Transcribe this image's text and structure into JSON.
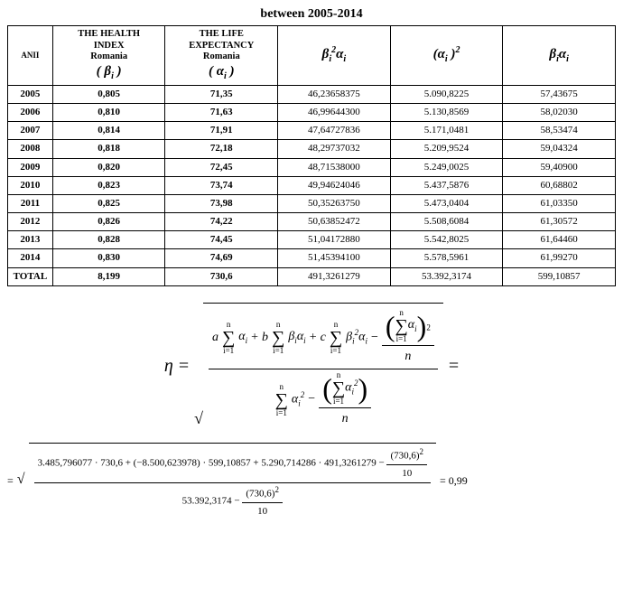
{
  "title": "between 2005-2014",
  "table": {
    "headers": {
      "anii": "ANII",
      "health": {
        "line1": "THE HEALTH",
        "line2": "INDEX",
        "line3": "Romania",
        "sym_pre": "( ",
        "sym_var": "β",
        "sym_sub": "i",
        "sym_post": " )"
      },
      "life": {
        "line1": "THE LIFE",
        "line2": "EXPECTANCY",
        "line3": "Romania",
        "sym_pre": "( ",
        "sym_var": "α",
        "sym_sub": "i",
        "sym_post": " )"
      },
      "c3": {
        "b": "β",
        "bsub": "i",
        "bsup": "2",
        "a": "α",
        "asub": "i"
      },
      "c4": {
        "pre": "(",
        "a": "α",
        "asub": "i",
        "post": " )",
        "sup": "2"
      },
      "c5": {
        "b": "β",
        "bsub": "i",
        "a": "α",
        "asub": "i"
      }
    },
    "rows": [
      {
        "year": "2005",
        "beta": "0,805",
        "alpha": "71,35",
        "c3": "46,23658375",
        "c4": "5.090,8225",
        "c5": "57,43675"
      },
      {
        "year": "2006",
        "beta": "0,810",
        "alpha": "71,63",
        "c3": "46,99644300",
        "c4": "5.130,8569",
        "c5": "58,02030"
      },
      {
        "year": "2007",
        "beta": "0,814",
        "alpha": "71,91",
        "c3": "47,64727836",
        "c4": "5.171,0481",
        "c5": "58,53474"
      },
      {
        "year": "2008",
        "beta": "0,818",
        "alpha": "72,18",
        "c3": "48,29737032",
        "c4": "5.209,9524",
        "c5": "59,04324"
      },
      {
        "year": "2009",
        "beta": "0,820",
        "alpha": "72,45",
        "c3": "48,71538000",
        "c4": "5.249,0025",
        "c5": "59,40900"
      },
      {
        "year": "2010",
        "beta": "0,823",
        "alpha": "73,74",
        "c3": "49,94624046",
        "c4": "5.437,5876",
        "c5": "60,68802"
      },
      {
        "year": "2011",
        "beta": "0,825",
        "alpha": "73,98",
        "c3": "50,35263750",
        "c4": "5.473,0404",
        "c5": "61,03350"
      },
      {
        "year": "2012",
        "beta": "0,826",
        "alpha": "74,22",
        "c3": "50,63852472",
        "c4": "5.508,6084",
        "c5": "61,30572"
      },
      {
        "year": "2013",
        "beta": "0,828",
        "alpha": "74,45",
        "c3": "51,04172880",
        "c4": "5.542,8025",
        "c5": "61,64460"
      },
      {
        "year": "2014",
        "beta": "0,830",
        "alpha": "74,69",
        "c3": "51,45394100",
        "c4": "5.578,5961",
        "c5": "61,99270"
      }
    ],
    "total": {
      "label": "TOTAL",
      "beta": "8,199",
      "alpha": "730,6",
      "c3": "491,3261279",
      "c4": "53.392,3174",
      "c5": "599,10857"
    }
  },
  "eq1": {
    "eta": "η",
    "equals": "=",
    "a": "a",
    "b": "b",
    "c": "c",
    "alpha": "α",
    "beta": "β",
    "subi": "i",
    "sq": "2",
    "n": "n",
    "sum_lower": "i=1",
    "sum_upper": "n",
    "traileq": "="
  },
  "eq2": {
    "leadeq": "=",
    "num_text": "3.485,796077 · 730,6 + (−8.500,623978) · 599,10857 + 5.290,714286 · 491,3261279 −",
    "num_frac_top": "(730,6)",
    "num_frac_top_sup": "2",
    "num_frac_bot": "10",
    "den_text_a": "53.392,3174 −",
    "den_frac_top": "(730,6)",
    "den_frac_top_sup": "2",
    "den_frac_bot": "10",
    "result": "= 0,99"
  },
  "colors": {
    "text": "#000000",
    "background": "#ffffff",
    "border": "#000000"
  }
}
